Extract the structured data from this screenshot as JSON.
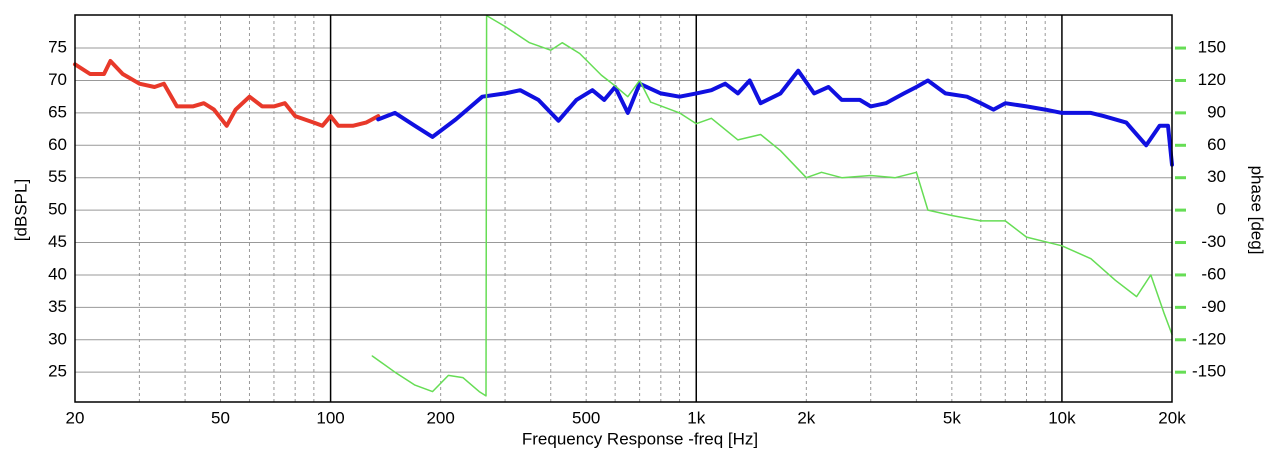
{
  "chart_data": {
    "type": "line",
    "xlabel": "Frequency Response -freq [Hz]",
    "ylabel": "[dBSPL]",
    "y2label": "phase [deg]",
    "xscale": "log",
    "grid": true,
    "xlim": [
      20,
      20000
    ],
    "xticks": [
      20,
      50,
      100,
      200,
      500,
      {
        "value": 1000,
        "label": "1k"
      },
      {
        "value": 2000,
        "label": "2k"
      },
      {
        "value": 5000,
        "label": "5k"
      },
      {
        "value": 10000,
        "label": "10k"
      },
      {
        "value": 20000,
        "label": "20k"
      }
    ],
    "xminor_ticks": [
      30,
      40,
      60,
      70,
      80,
      90,
      300,
      400,
      600,
      700,
      800,
      900,
      3000,
      4000,
      6000,
      7000,
      8000,
      9000
    ],
    "ylim": [
      20.4,
      80.1
    ],
    "yticks": [
      25,
      30,
      35,
      40,
      45,
      50,
      55,
      60,
      65,
      70,
      75
    ],
    "y2lim": [
      -177.6,
      180.6
    ],
    "y2ticks": [
      -150,
      -120,
      -90,
      -60,
      -30,
      0,
      30,
      60,
      90,
      120,
      150
    ],
    "y2color": "#66dd55",
    "series": [
      {
        "color": "#e8392a",
        "width": 4,
        "x": [
          20,
          22,
          24,
          25,
          27,
          30,
          33,
          35,
          38,
          42,
          45,
          48,
          52,
          55,
          60,
          65,
          70,
          75,
          80,
          90,
          95,
          100,
          105,
          115,
          125,
          135
        ],
        "values": [
          72.5,
          71,
          71,
          73,
          71,
          69.5,
          69,
          69.5,
          66,
          66,
          66.5,
          65.5,
          63,
          65.5,
          67.5,
          66,
          66,
          66.5,
          64.5,
          63.5,
          63,
          64.5,
          63,
          63,
          63.5,
          64.5
        ]
      },
      {
        "color": "#1010e0",
        "width": 4,
        "x": [
          135,
          150,
          170,
          190,
          220,
          260,
          300,
          330,
          370,
          420,
          470,
          520,
          560,
          600,
          650,
          700,
          800,
          900,
          1000,
          1100,
          1200,
          1300,
          1400,
          1500,
          1700,
          1900,
          2100,
          2300,
          2500,
          2800,
          3000,
          3300,
          3700,
          4000,
          4300,
          4800,
          5500,
          6000,
          6500,
          7000,
          8000,
          9000,
          10000,
          12000,
          13000,
          15000,
          17000,
          18500,
          19500,
          20000
        ],
        "values": [
          64,
          65,
          63,
          61.3,
          64,
          67.5,
          68,
          68.5,
          67,
          63.8,
          67,
          68.5,
          67,
          69,
          65,
          69.5,
          68,
          67.5,
          68,
          68.5,
          69.5,
          68,
          70,
          66.5,
          68,
          71.5,
          68,
          69,
          67,
          67,
          66,
          66.5,
          68,
          69,
          70,
          68,
          67.5,
          66.5,
          65.5,
          66.5,
          66,
          65.5,
          65,
          65,
          64.5,
          63.5,
          60,
          63,
          63,
          57
        ]
      },
      {
        "color": "#66dd55",
        "width": 1.5,
        "axis": "y2",
        "x": [
          130,
          150,
          170,
          190,
          210,
          230,
          255,
          266,
          267,
          300,
          350,
          400,
          430,
          480,
          550,
          600,
          650,
          700,
          750,
          900,
          1000,
          1100,
          1300,
          1500,
          1700,
          2000,
          2200,
          2500,
          3000,
          3500,
          4000,
          4300,
          5000,
          6000,
          7000,
          8000,
          10000,
          12000,
          14000,
          16000,
          17500,
          19000,
          20000
        ],
        "values": [
          -135,
          -150,
          -162,
          -168,
          -153,
          -155,
          -168,
          -172,
          180,
          170,
          155,
          148,
          155,
          145,
          125,
          115,
          105,
          120,
          100,
          90,
          80,
          85,
          65,
          70,
          55,
          30,
          35,
          30,
          32,
          30,
          35,
          0,
          -5,
          -10,
          -10,
          -25,
          -33,
          -45,
          -65,
          -80,
          -60,
          -95,
          -115
        ]
      }
    ]
  }
}
